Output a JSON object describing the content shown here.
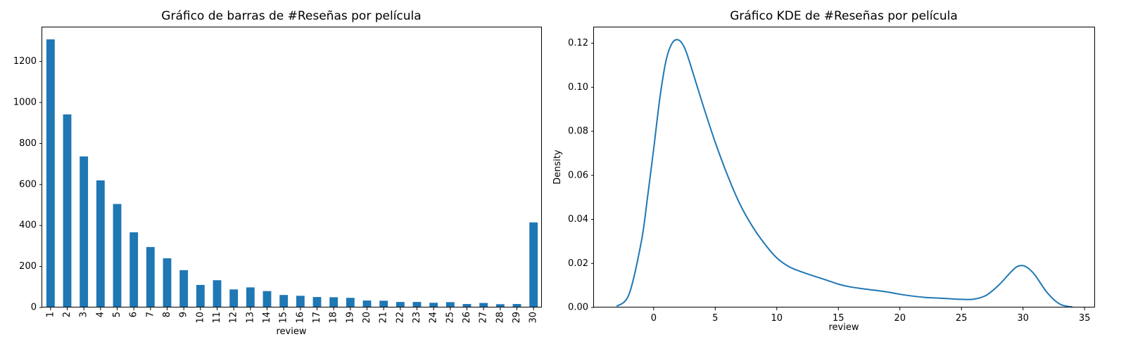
{
  "chart_data": [
    {
      "type": "bar",
      "title": "Gráfico de barras de #Reseñas por película",
      "xlabel": "review",
      "ylabel": "",
      "categories": [
        "1",
        "2",
        "3",
        "4",
        "5",
        "6",
        "7",
        "8",
        "9",
        "10",
        "11",
        "12",
        "13",
        "14",
        "15",
        "16",
        "17",
        "18",
        "19",
        "20",
        "21",
        "22",
        "23",
        "24",
        "25",
        "26",
        "27",
        "28",
        "29",
        "30"
      ],
      "values": [
        1308,
        942,
        737,
        620,
        505,
        367,
        295,
        240,
        182,
        110,
        133,
        88,
        98,
        80,
        61,
        57,
        51,
        50,
        47,
        34,
        33,
        27,
        27,
        23,
        26,
        17,
        22,
        16,
        17,
        415
      ],
      "ylim": [
        0,
        1370
      ],
      "yticks": [
        "0",
        "200",
        "400",
        "600",
        "800",
        "1000",
        "1200"
      ],
      "color": "#1f77b4",
      "grid": false,
      "legend": false
    },
    {
      "type": "line",
      "title": "Gráfico KDE de #Reseñas por película",
      "xlabel": "review",
      "ylabel": "Density",
      "x": [
        -3,
        -2,
        -1,
        -0.5,
        0,
        0.5,
        1,
        1.5,
        2,
        2.5,
        3,
        4,
        5,
        6,
        7,
        8,
        9,
        10,
        11,
        12,
        13,
        14,
        15,
        16,
        17,
        18,
        19,
        20,
        21,
        22,
        23,
        24,
        25,
        26,
        27,
        28,
        29,
        29.5,
        30,
        30.5,
        31,
        32,
        33,
        34
      ],
      "y": [
        0.0005,
        0.006,
        0.03,
        0.05,
        0.072,
        0.095,
        0.112,
        0.12,
        0.1215,
        0.118,
        0.11,
        0.092,
        0.075,
        0.06,
        0.047,
        0.037,
        0.029,
        0.0225,
        0.0185,
        0.0162,
        0.0143,
        0.0125,
        0.0106,
        0.0093,
        0.0085,
        0.0078,
        0.007,
        0.006,
        0.0052,
        0.0046,
        0.0043,
        0.004,
        0.0037,
        0.0038,
        0.0055,
        0.01,
        0.016,
        0.0185,
        0.019,
        0.0175,
        0.0145,
        0.0065,
        0.0015,
        0.0002
      ],
      "xlim": [
        -4.85,
        35.85
      ],
      "ylim": [
        0,
        0.1275
      ],
      "xticks": [
        0,
        5,
        10,
        15,
        20,
        25,
        30,
        35
      ],
      "yticks": [
        0,
        0.02,
        0.04,
        0.06,
        0.08,
        0.1,
        0.12
      ],
      "yticklabels": [
        "0.00",
        "0.02",
        "0.04",
        "0.06",
        "0.08",
        "0.10",
        "0.12"
      ],
      "color": "#1f77b4",
      "grid": false,
      "legend": false
    }
  ]
}
